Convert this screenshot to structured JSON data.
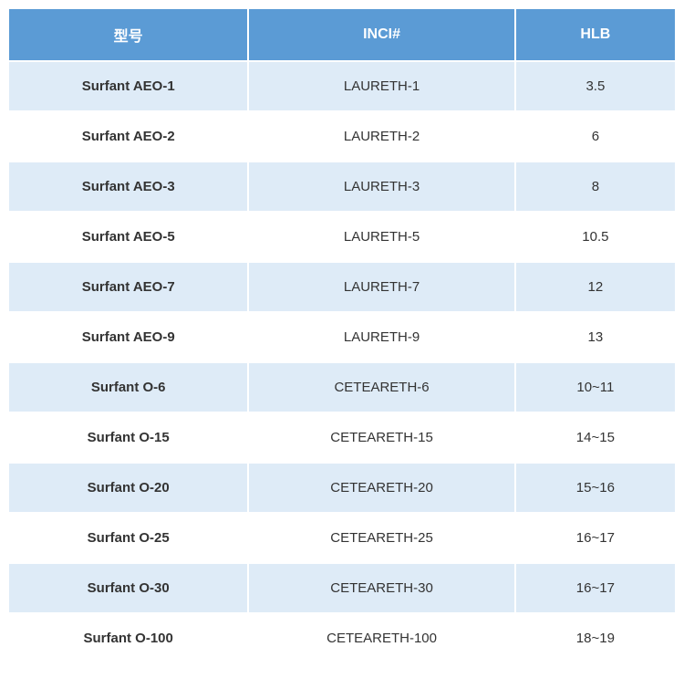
{
  "table": {
    "type": "table",
    "header_bg": "#5b9bd5",
    "header_color": "#ffffff",
    "row_even_bg": "#deebf7",
    "row_odd_bg": "#ffffff",
    "text_color": "#333333",
    "header_fontsize": 16,
    "cell_fontsize": 15,
    "columns": [
      {
        "key": "model",
        "label": "型号",
        "width_pct": 36,
        "bold": true
      },
      {
        "key": "inci",
        "label": "INCI#",
        "width_pct": 40,
        "bold": false
      },
      {
        "key": "hlb",
        "label": "HLB",
        "width_pct": 24,
        "bold": false
      }
    ],
    "rows": [
      {
        "model": "Surfant AEO-1",
        "inci": "LAURETH-1",
        "hlb": "3.5"
      },
      {
        "model": "Surfant AEO-2",
        "inci": "LAURETH-2",
        "hlb": "6"
      },
      {
        "model": "Surfant AEO-3",
        "inci": "LAURETH-3",
        "hlb": "8"
      },
      {
        "model": "Surfant AEO-5",
        "inci": "LAURETH-5",
        "hlb": "10.5"
      },
      {
        "model": "Surfant AEO-7",
        "inci": "LAURETH-7",
        "hlb": "12"
      },
      {
        "model": "Surfant AEO-9",
        "inci": "LAURETH-9",
        "hlb": "13"
      },
      {
        "model": "Surfant O-6",
        "inci": "CETEARETH-6",
        "hlb": "10~11"
      },
      {
        "model": "Surfant O-15",
        "inci": "CETEARETH-15",
        "hlb": "14~15"
      },
      {
        "model": "Surfant O-20",
        "inci": "CETEARETH-20",
        "hlb": "15~16"
      },
      {
        "model": "Surfant O-25",
        "inci": "CETEARETH-25",
        "hlb": "16~17"
      },
      {
        "model": "Surfant O-30",
        "inci": "CETEARETH-30",
        "hlb": "16~17"
      },
      {
        "model": "Surfant O-100",
        "inci": "CETEARETH-100",
        "hlb": "18~19"
      }
    ]
  }
}
